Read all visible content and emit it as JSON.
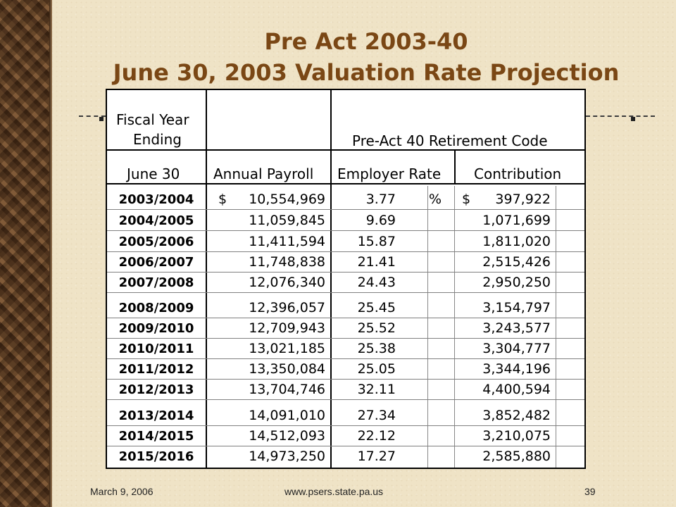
{
  "slide": {
    "title_line1": "Pre Act 2003-40",
    "title_line2": "June 30, 2003 Valuation Rate Projection"
  },
  "table": {
    "header": {
      "fiscal_year_line1": "Fiscal Year",
      "fiscal_year_line2": "Ending",
      "group_label": "Pre-Act 40 Retirement Code",
      "col_year": "June 30",
      "col_payroll": "Annual Payroll",
      "col_rate": "Employer Rate",
      "col_contribution": "Contribution"
    },
    "first_row_symbols": {
      "payroll_currency": "$",
      "rate_unit": "%",
      "contribution_currency": "$"
    },
    "rows": [
      {
        "year": "2003/2004",
        "payroll": "10,554,969",
        "rate": "3.77",
        "contribution": "397,922"
      },
      {
        "year": "2004/2005",
        "payroll": "11,059,845",
        "rate": "9.69",
        "contribution": "1,071,699"
      },
      {
        "year": "2005/2006",
        "payroll": "11,411,594",
        "rate": "15.87",
        "contribution": "1,811,020"
      },
      {
        "year": "2006/2007",
        "payroll": "11,748,838",
        "rate": "21.41",
        "contribution": "2,515,426"
      },
      {
        "year": "2007/2008",
        "payroll": "12,076,340",
        "rate": "24.43",
        "contribution": "2,950,250"
      },
      {
        "year": "2008/2009",
        "payroll": "12,396,057",
        "rate": "25.45",
        "contribution": "3,154,797"
      },
      {
        "year": "2009/2010",
        "payroll": "12,709,943",
        "rate": "25.52",
        "contribution": "3,243,577"
      },
      {
        "year": "2010/2011",
        "payroll": "13,021,185",
        "rate": "25.38",
        "contribution": "3,304,777"
      },
      {
        "year": "2011/2012",
        "payroll": "13,350,084",
        "rate": "25.05",
        "contribution": "3,344,196"
      },
      {
        "year": "2012/2013",
        "payroll": "13,704,746",
        "rate": "32.11",
        "contribution": "4,400,594"
      },
      {
        "year": "2013/2014",
        "payroll": "14,091,010",
        "rate": "27.34",
        "contribution": "3,852,482"
      },
      {
        "year": "2014/2015",
        "payroll": "14,512,093",
        "rate": "22.12",
        "contribution": "3,210,075"
      },
      {
        "year": "2015/2016",
        "payroll": "14,973,250",
        "rate": "17.27",
        "contribution": "2,585,880"
      }
    ]
  },
  "footer": {
    "date": "March 9, 2006",
    "url": "www.psers.state.pa.us",
    "page": "39"
  }
}
